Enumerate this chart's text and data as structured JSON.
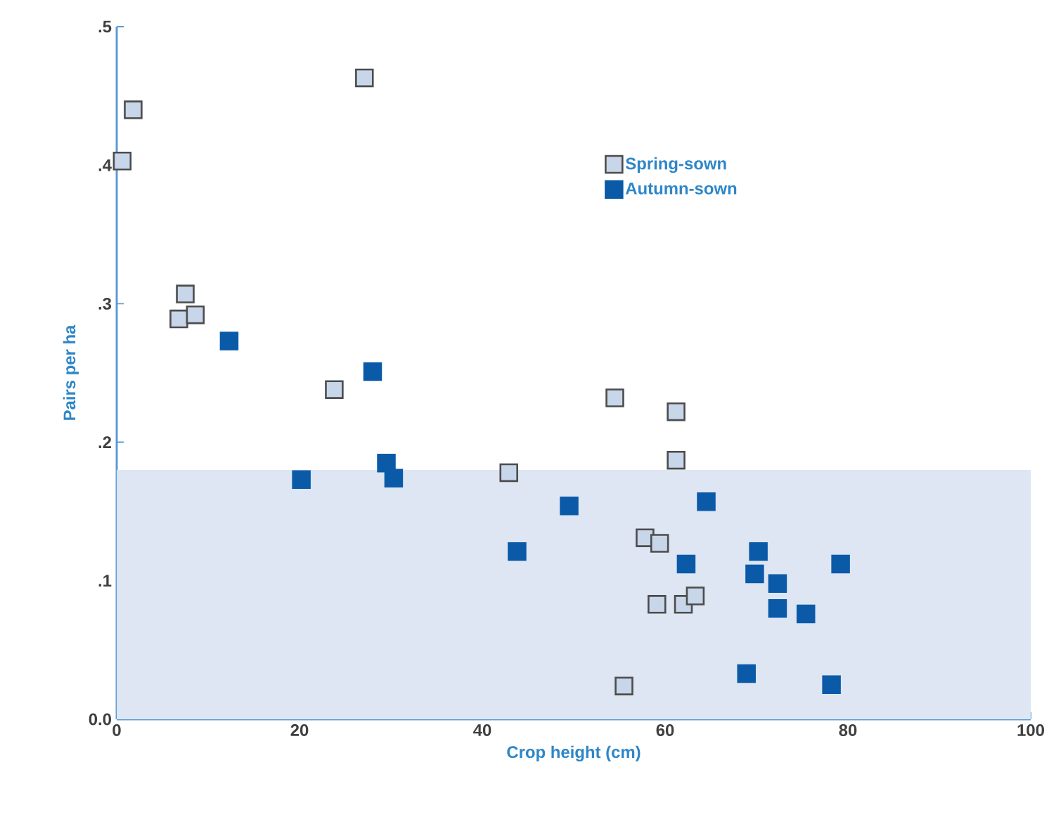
{
  "chart_data": {
    "type": "scatter",
    "xlabel": "Crop height (cm)",
    "ylabel": "Pairs per ha",
    "xlim": [
      0,
      100
    ],
    "xticks": [
      0,
      20,
      40,
      60,
      80,
      100
    ],
    "ylim": [
      0,
      0.5
    ],
    "yticks": [
      {
        "value": 0,
        "label": "0.0"
      },
      {
        "value": 0.1,
        "label": ".1"
      },
      {
        "value": 0.2,
        "label": ".2"
      },
      {
        "value": 0.3,
        "label": ".3"
      },
      {
        "value": 0.4,
        "label": ".4"
      },
      {
        "value": 0.5,
        "label": ".5"
      }
    ],
    "marker": "square",
    "grid": false,
    "legend": "top right",
    "bands": [
      {
        "axis": "y",
        "from": 0,
        "to": 0.18,
        "color": "#dde6f2"
      }
    ],
    "series": [
      {
        "name": "Spring-sown",
        "color": "#c8d6ea",
        "x": [
          0.6,
          1.8,
          27.1,
          7.5,
          6.8,
          8.6,
          23.8,
          54.5,
          61.2,
          61.2,
          42.9,
          57.8,
          59.4,
          59.1,
          62.0,
          63.3,
          55.5
        ],
        "values": [
          0.403,
          0.44,
          0.463,
          0.307,
          0.289,
          0.292,
          0.238,
          0.232,
          0.222,
          0.187,
          0.178,
          0.131,
          0.127,
          0.083,
          0.083,
          0.089,
          0.024
        ]
      },
      {
        "name": "Autumn-sown",
        "color": "#0a5aa8",
        "x": [
          12.3,
          28.0,
          20.2,
          29.5,
          30.3,
          43.8,
          49.5,
          64.5,
          62.3,
          70.2,
          69.8,
          72.3,
          72.3,
          75.4,
          79.2,
          68.9,
          78.2
        ],
        "values": [
          0.273,
          0.251,
          0.173,
          0.185,
          0.174,
          0.121,
          0.154,
          0.157,
          0.112,
          0.121,
          0.105,
          0.098,
          0.08,
          0.076,
          0.112,
          0.033,
          0.025
        ]
      }
    ]
  }
}
